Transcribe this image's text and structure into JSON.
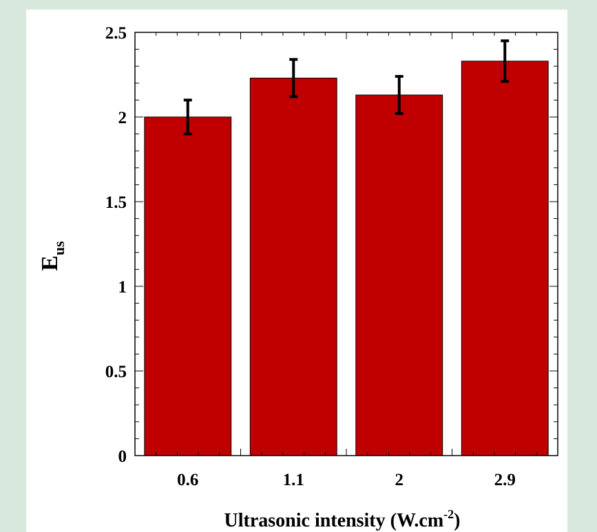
{
  "header_strip": {
    "text": ""
  },
  "chart_data": {
    "type": "bar",
    "categories": [
      "0.6",
      "1.1",
      "2",
      "2.9"
    ],
    "values": [
      2.0,
      2.23,
      2.13,
      2.33
    ],
    "errors": [
      0.1,
      0.11,
      0.11,
      0.12
    ],
    "title": "",
    "ylabel_main": "E",
    "ylabel_sub": "us",
    "xlabel_main": "Ultrasonic intensity (W.cm",
    "xlabel_sup": "-2",
    "xlabel_end": ")",
    "ylim": [
      0,
      2.5
    ],
    "yticks": [
      "0",
      "0.5",
      "1",
      "1.5",
      "2",
      "2.5"
    ],
    "bar_color": "#c00000",
    "grid": false
  }
}
